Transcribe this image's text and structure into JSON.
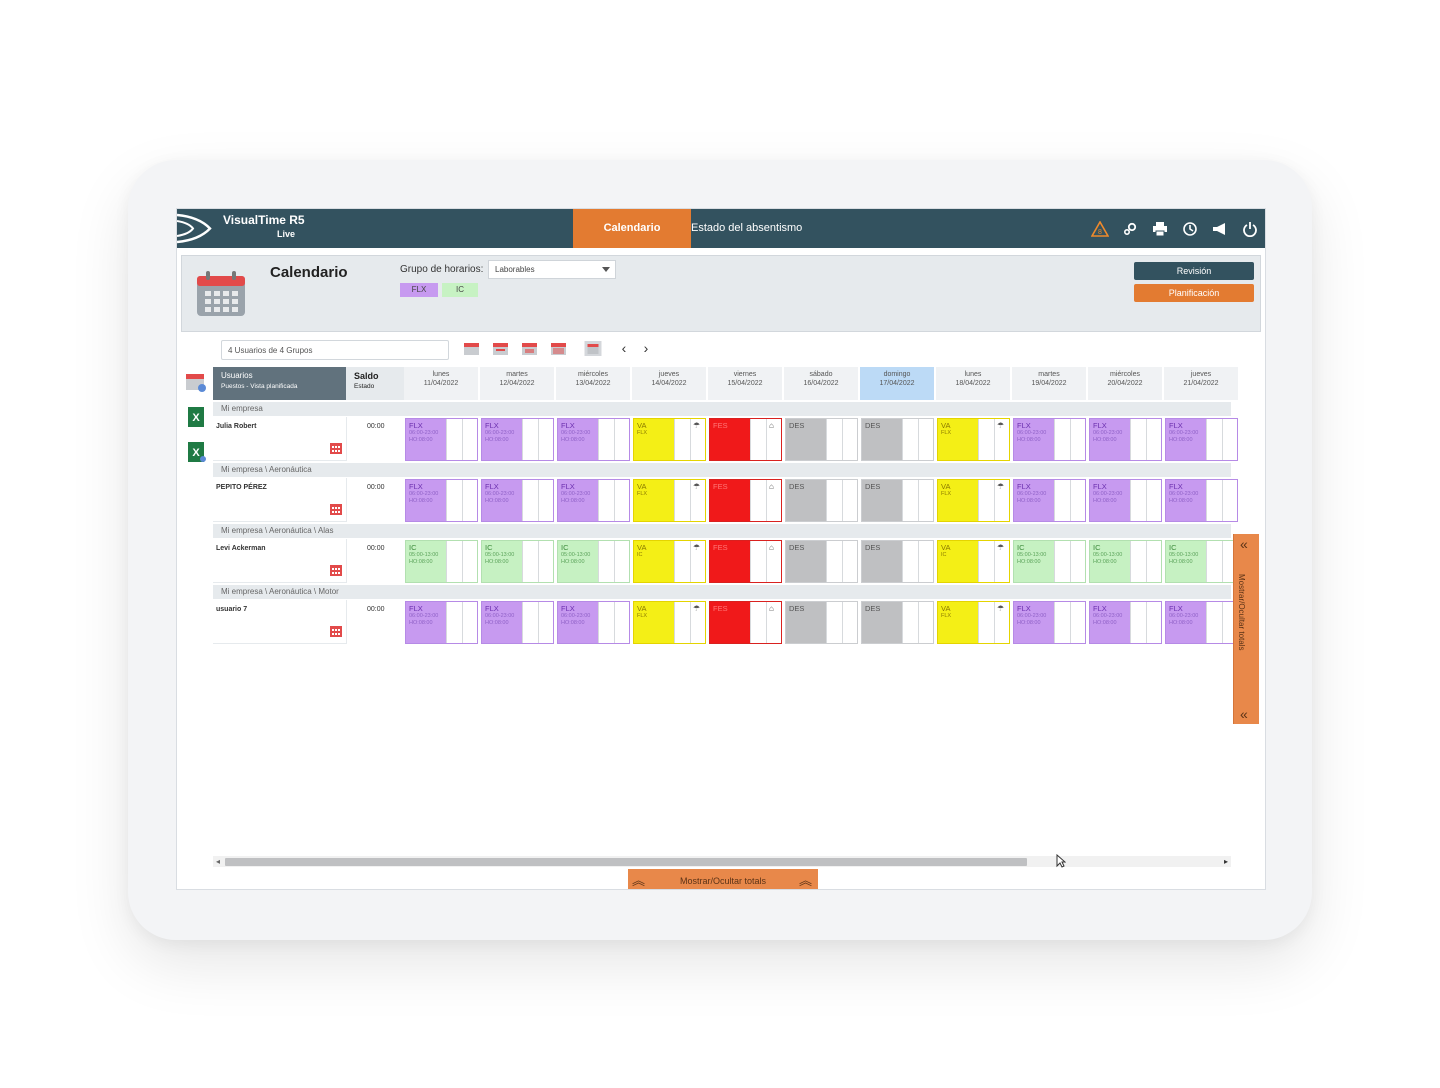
{
  "app": {
    "brand": "VisualTime R5",
    "edition": "Live"
  },
  "tabs": {
    "active": "Calendario",
    "other": "Estado del absentismo"
  },
  "top_icons": [
    "warning-icon",
    "settings-icon",
    "print-icon",
    "history-icon",
    "megaphone-icon",
    "power-icon"
  ],
  "header": {
    "title": "Calendario",
    "group_label": "Grupo de horarios:",
    "group_value": "Laborables",
    "chips": [
      "FLX",
      "IC"
    ],
    "btn_review": "Revisión",
    "btn_plan": "Planificación"
  },
  "toolbar": {
    "user_count": "4 Usuarios de 4 Grupos"
  },
  "grid": {
    "users_header": "Usuarios",
    "users_sub": "Puestos - Vista planificada",
    "saldo_header": "Saldo",
    "saldo_sub": "Estado",
    "days": [
      {
        "name": "lunes",
        "date": "11/04/2022"
      },
      {
        "name": "martes",
        "date": "12/04/2022"
      },
      {
        "name": "miércoles",
        "date": "13/04/2022"
      },
      {
        "name": "jueves",
        "date": "14/04/2022"
      },
      {
        "name": "viernes",
        "date": "15/04/2022"
      },
      {
        "name": "sábado",
        "date": "16/04/2022"
      },
      {
        "name": "domingo",
        "date": "17/04/2022",
        "highlight": true
      },
      {
        "name": "lunes",
        "date": "18/04/2022"
      },
      {
        "name": "martes",
        "date": "19/04/2022"
      },
      {
        "name": "miércoles",
        "date": "20/04/2022"
      },
      {
        "name": "jueves",
        "date": "21/04/2022"
      }
    ],
    "groups": [
      {
        "label": "Mi empresa",
        "user": "Julia Robert",
        "saldo": "00:00",
        "shift": "FLX",
        "time": "06:00-23:00",
        "ho": "HO:08:00"
      },
      {
        "label": "Mi empresa \\ Aeronáutica",
        "user": "PEPITO PÉREZ",
        "saldo": "00:00",
        "shift": "FLX",
        "time": "06:00-23:00",
        "ho": "HO:08:00"
      },
      {
        "label": "Mi empresa \\ Aeronáutica \\ Alas",
        "user": "Levi Ackerman",
        "saldo": "00:00",
        "shift": "IC",
        "time": "05:00-13:00",
        "ho": "HO:08:00"
      },
      {
        "label": "Mi empresa \\ Aeronáutica \\ Motor",
        "user": "usuario 7",
        "saldo": "00:00",
        "shift": "FLX",
        "time": "06:00-23:00",
        "ho": "HO:08:00"
      }
    ],
    "codes": {
      "va": "VA",
      "fes": "FES",
      "des": "DES"
    }
  },
  "totals_label": "Mostrar/Ocultar totals",
  "colors": {
    "navbar": "#33525f",
    "accent": "#e37b31",
    "flx": "#c79af0",
    "ic": "#c6f1c2",
    "va": "#f4ef16",
    "fes": "#f0191a",
    "des": "#bfc0c2"
  }
}
